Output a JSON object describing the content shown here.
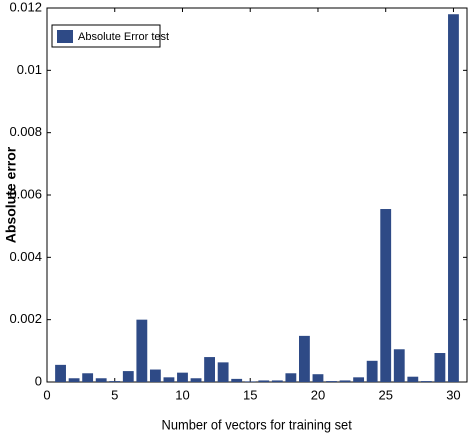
{
  "chart_data": {
    "type": "bar",
    "x": [
      1,
      2,
      3,
      4,
      5,
      6,
      7,
      8,
      9,
      10,
      11,
      12,
      13,
      14,
      15,
      16,
      17,
      18,
      19,
      20,
      21,
      22,
      23,
      24,
      25,
      26,
      27,
      28,
      29,
      30
    ],
    "series": [
      {
        "name": "Absolute Error test",
        "color": "#2e4a86",
        "values": [
          0.00055,
          0.00012,
          0.00028,
          0.00012,
          3e-05,
          0.00035,
          0.002,
          0.0004,
          0.00015,
          0.0003,
          0.00012,
          0.0008,
          0.00063,
          0.0001,
          2e-05,
          5e-05,
          5e-05,
          0.00028,
          0.00148,
          0.00025,
          3e-05,
          5e-05,
          0.00015,
          0.00068,
          0.00555,
          0.00105,
          0.00017,
          3e-05,
          0.00093,
          0.0118
        ]
      }
    ],
    "xlabel": "Number of vectors for training set",
    "ylabel": "Absolute error",
    "xlim": [
      0,
      31
    ],
    "xticks": [
      0,
      5,
      10,
      15,
      20,
      25,
      30
    ],
    "ylim": [
      0,
      0.012
    ],
    "yticks": [
      0,
      0.002,
      0.004,
      0.006,
      0.008,
      0.01,
      0.012
    ],
    "legend": "upper left"
  }
}
